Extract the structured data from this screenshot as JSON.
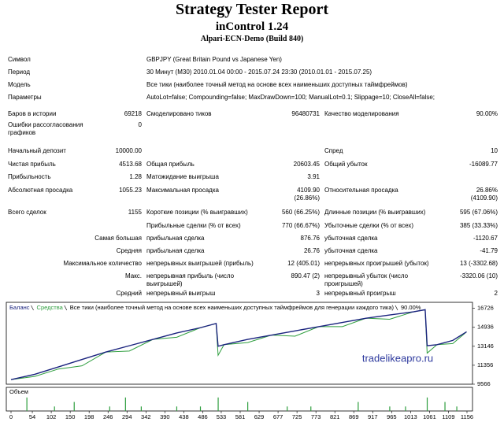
{
  "header": {
    "title": "Strategy Tester Report",
    "subtitle": "inControl 1.24",
    "server": "Alpari-ECN-Demo (Build 840)"
  },
  "params": [
    {
      "label": "Символ",
      "value": "GBPJPY (Great Britain Pound vs Japanese Yen)"
    },
    {
      "label": "Период",
      "value": "30 Минут (M30) 2010.01.04 00:00 - 2015.07.24 23:30 (2010.01.01 - 2015.07.25)"
    },
    {
      "label": "Модель",
      "value": "Все тики (наиболее точный метод на основе всех наименьших доступных таймфреймов)"
    },
    {
      "label": "Параметры",
      "value": "AutoLot=false; Compounding=false; MaxDrawDown=100; ManualLot=0.1; Slippage=10; CloseAll=false;"
    }
  ],
  "stats": [
    {
      "l1": "Баров в истории",
      "v1": "69218",
      "l2": "Смоделировано тиков",
      "v2": "96480731",
      "l3": "Качество моделирования",
      "v3": "90.00%"
    },
    {
      "l1": "Ошибки рассогласования графиков",
      "v1": "0"
    },
    {
      "l1": "Начальный депозит",
      "v1": "10000.00",
      "l3": "Спред",
      "v3": "10"
    },
    {
      "l1": "Чистая прибыль",
      "v1": "4513.68",
      "l2": "Общая прибыль",
      "v2": "20603.45",
      "l3": "Общий убыток",
      "v3": "-16089.77"
    },
    {
      "l1": "Прибыльность",
      "v1": "1.28",
      "l2": "Матожидание выигрыша",
      "v2": "3.91"
    },
    {
      "l1": "Абсолютная просадка",
      "v1": "1055.23",
      "l2": "Максимальная просадка",
      "v2": "4109.90 (26.86%)",
      "l3": "Относительная просадка",
      "v3": "26.86% (4109.90)"
    },
    {
      "l1": "Всего сделок",
      "v1": "1155",
      "l2": "Короткие позиции (% выигравших)",
      "v2": "560 (66.25%)",
      "l3": "Длинные позиции (% выигравших)",
      "v3": "595 (67.06%)"
    },
    {
      "l2": "Прибыльные сделки (% от всех)",
      "v2": "770 (66.67%)",
      "l3": "Убыточные сделки (% от всех)",
      "v3": "385 (33.33%)"
    },
    {
      "l1": "Самая большая",
      "l2": "прибыльная сделка",
      "v2": "876.76",
      "l3": "убыточная сделка",
      "v3": "-1120.67"
    },
    {
      "l1": "Средняя",
      "l2": "прибыльная сделка",
      "v2": "26.76",
      "l3": "убыточная сделка",
      "v3": "-41.79"
    },
    {
      "l1": "Максимальное количество",
      "l2": "непрерывных выигрышей (прибыль)",
      "v2": "12 (405.01)",
      "l3": "непрерывных проигрышей (убыток)",
      "v3": "13 (-3302.68)"
    },
    {
      "l1": "Макс.",
      "l2": "непрерывная прибыль (число выигрышей)",
      "v2": "890.47 (2)",
      "l3": "непрерывный убыток (число проигрышей)",
      "v3": "-3320.06 (10)"
    },
    {
      "l1": "Средний",
      "l2": "непрерывный выигрыш",
      "v2": "3",
      "l3": "непрерывный проигрыш",
      "v3": "2"
    }
  ],
  "chart_data": [
    {
      "type": "line",
      "model": "Все тики (наиболее точный метод на основе всех наименьших доступных таймфреймов для генерации каждого тика)",
      "quality": "90.00%",
      "watermark": "tradelikeapro.ru",
      "x": [
        0,
        60,
        120,
        180,
        240,
        300,
        360,
        420,
        480,
        520,
        525,
        540,
        600,
        660,
        720,
        780,
        840,
        900,
        960,
        1020,
        1050,
        1055,
        1080,
        1120,
        1155
      ],
      "series": [
        {
          "name": "Баланс",
          "color": "#1a237e",
          "values": [
            10000,
            10500,
            11200,
            11900,
            12600,
            13200,
            13800,
            14400,
            14900,
            15300,
            13150,
            13300,
            13800,
            14200,
            14600,
            15000,
            15400,
            15800,
            16100,
            16400,
            16600,
            13200,
            13300,
            13700,
            14513.68
          ]
        },
        {
          "name": "Средства",
          "color": "#2e9e3e",
          "values": [
            10000,
            10300,
            11000,
            11300,
            12600,
            12700,
            13800,
            14000,
            14900,
            15300,
            12300,
            13300,
            13500,
            14200,
            14100,
            15000,
            15000,
            15800,
            15700,
            16400,
            16600,
            12500,
            13300,
            13400,
            14513.68
          ]
        }
      ],
      "xlim": [
        0,
        1170
      ],
      "ylim": [
        9566,
        17000
      ],
      "yticks": [
        16726,
        14936,
        13146,
        11356,
        9566
      ],
      "xticks": [
        0,
        54,
        102,
        150,
        198,
        246,
        294,
        342,
        390,
        438,
        486,
        533,
        581,
        629,
        677,
        725,
        773,
        821,
        869,
        917,
        965,
        1013,
        1061,
        1109,
        1156
      ]
    },
    {
      "type": "bar",
      "title": "Объем",
      "x": [
        40,
        110,
        160,
        250,
        290,
        330,
        420,
        480,
        525,
        600,
        700,
        760,
        880,
        960,
        1000,
        1055,
        1100,
        1130
      ],
      "values": [
        3,
        1,
        2,
        1,
        3,
        1,
        1,
        1,
        3,
        2,
        1,
        1,
        2,
        1,
        1,
        3,
        2,
        1
      ],
      "ylim": [
        0,
        3.5
      ],
      "color": "#2e9e3e"
    }
  ]
}
